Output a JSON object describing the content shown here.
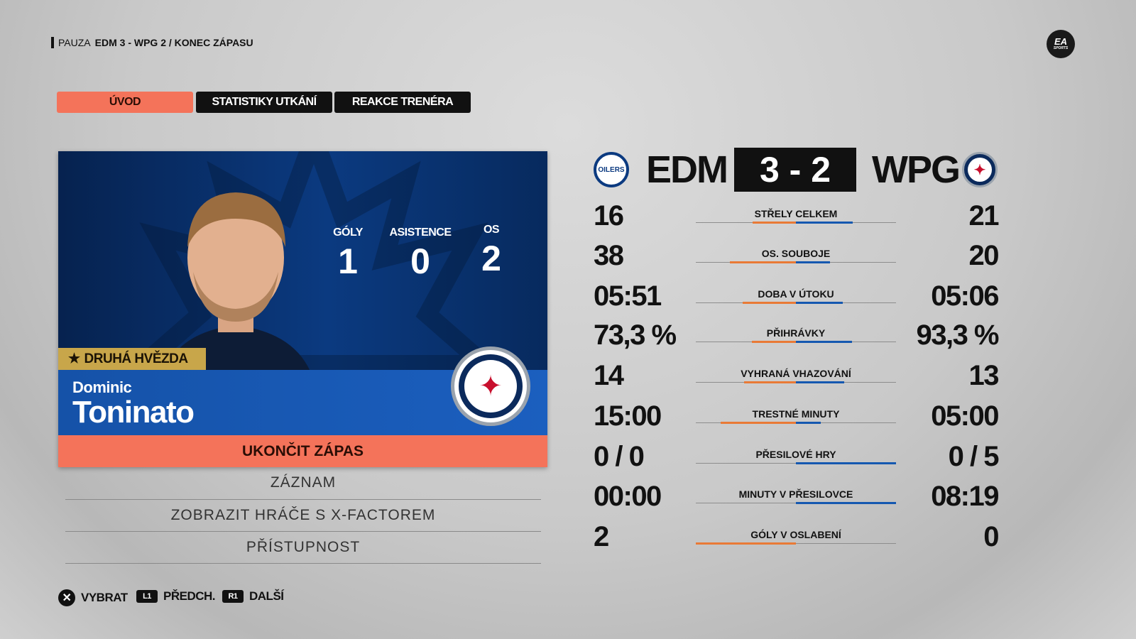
{
  "breadcrumb": {
    "prefix": "PAUZA",
    "detail": "EDM 3 - WPG 2 / KONEC ZÁPASU"
  },
  "brand": "EA SPORTS",
  "tabs": [
    {
      "label": "ÚVOD",
      "active": true
    },
    {
      "label": "STATISTIKY UTKÁNÍ",
      "active": false
    },
    {
      "label": "REAKCE TRENÉRA",
      "active": false
    }
  ],
  "player": {
    "first_name": "Dominic",
    "last_name": "Toninato",
    "award": "DRUHÁ HVĚZDA",
    "award_icon": "star-icon",
    "stats": [
      {
        "label": "GÓLY",
        "value": "1"
      },
      {
        "label": "ASISTENCE",
        "value": "0"
      },
      {
        "label": "OS",
        "value": "2"
      }
    ]
  },
  "menu": {
    "primary": "UKONČIT ZÁPAS",
    "items": [
      "ZÁZNAM",
      "ZOBRAZIT HRÁČE S X-FACTOREM",
      "PŘÍSTUPNOST"
    ]
  },
  "hints": [
    {
      "button": "✕",
      "label": "VYBRAT"
    },
    {
      "button": "L1",
      "label": "PŘEDCH."
    },
    {
      "button": "R1",
      "label": "DALŠÍ"
    }
  ],
  "game": {
    "home": "EDM",
    "away": "WPG",
    "score": "3 - 2",
    "home_logo": "OILERS"
  },
  "colors": {
    "accent": "#f4735a",
    "home_bar": "#e97a36",
    "away_bar": "#1558b0",
    "card_blue": "#0b3a80"
  },
  "stats": [
    {
      "label": "STŘELY CELKEM",
      "home": "16",
      "away": "21",
      "home_share": 0.43,
      "away_share": 0.57
    },
    {
      "label": "OS. SOUBOJE",
      "home": "38",
      "away": "20",
      "home_share": 0.66,
      "away_share": 0.34
    },
    {
      "label": "DOBA V ÚTOKU",
      "home": "05:51",
      "away": "05:06",
      "home_share": 0.53,
      "away_share": 0.47
    },
    {
      "label": "PŘIHRÁVKY",
      "home": "73,3 %",
      "away": "93,3 %",
      "home_share": 0.44,
      "away_share": 0.56
    },
    {
      "label": "VYHRANÁ VHAZOVÁNÍ",
      "home": "14",
      "away": "13",
      "home_share": 0.52,
      "away_share": 0.48
    },
    {
      "label": "TRESTNÉ MINUTY",
      "home": "15:00",
      "away": "05:00",
      "home_share": 0.75,
      "away_share": 0.25
    },
    {
      "label": "PŘESILOVÉ HRY",
      "home": "0 / 0",
      "away": "0 / 5",
      "home_share": 0,
      "away_share": 1
    },
    {
      "label": "MINUTY V PŘESILOVCE",
      "home": "00:00",
      "away": "08:19",
      "home_share": 0,
      "away_share": 1
    },
    {
      "label": "GÓLY V OSLABENÍ",
      "home": "2",
      "away": "0",
      "home_share": 1,
      "away_share": 0
    }
  ]
}
